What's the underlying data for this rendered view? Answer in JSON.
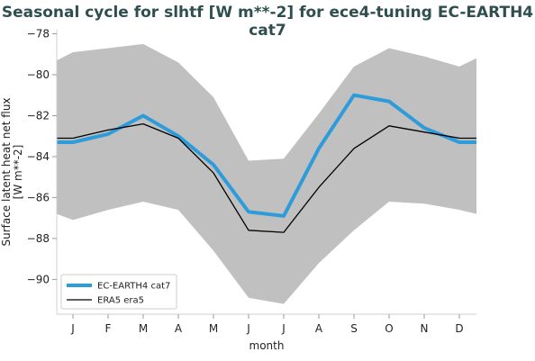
{
  "chart_data": {
    "type": "line",
    "title": "Seasonal cycle for slhtf [W m**-2] for ece4-tuning EC-EARTH4 cat7",
    "xlabel": "month",
    "ylabel": "Surface latent heat net flux\n[W m**-2]",
    "ylabel_lines": [
      "Surface latent heat net flux",
      "[W m**-2]"
    ],
    "categories": [
      "J",
      "F",
      "M",
      "A",
      "M",
      "J",
      "J",
      "A",
      "S",
      "O",
      "N",
      "D"
    ],
    "ylim": [
      -91.7,
      -77.8
    ],
    "yticks": [
      -78,
      -80,
      -82,
      -84,
      -86,
      -88,
      -90
    ],
    "grid": false,
    "legend_position": "bottom-left",
    "shaded_band": {
      "color": "#c0c0c0",
      "upper": [
        -78.9,
        -78.7,
        -78.5,
        -79.4,
        -81.1,
        -84.2,
        -84.1,
        -81.9,
        -79.6,
        -78.7,
        -79.1,
        -79.6
      ],
      "lower": [
        -87.1,
        -86.6,
        -86.2,
        -86.6,
        -88.6,
        -90.9,
        -91.2,
        -89.2,
        -87.6,
        -86.2,
        -86.3,
        -86.6
      ],
      "upper_edges": [
        -79.3,
        -79.2
      ],
      "lower_edges": [
        -86.8,
        -86.8
      ]
    },
    "series": [
      {
        "name": "EC-EARTH4 cat7",
        "color": "#2E9BDB",
        "values": [
          -83.3,
          -82.9,
          -82.0,
          -83.0,
          -84.4,
          -86.7,
          -86.9,
          -83.6,
          -81.0,
          -81.3,
          -82.6,
          -83.3
        ],
        "edges": [
          -83.3,
          -83.3
        ]
      },
      {
        "name": "ERA5 era5",
        "color": "#000000",
        "values": [
          -83.1,
          -82.7,
          -82.4,
          -83.1,
          -84.8,
          -87.6,
          -87.7,
          -85.5,
          -83.6,
          -82.5,
          -82.8,
          -83.1
        ],
        "edges": [
          -83.1,
          -83.1
        ]
      }
    ]
  }
}
